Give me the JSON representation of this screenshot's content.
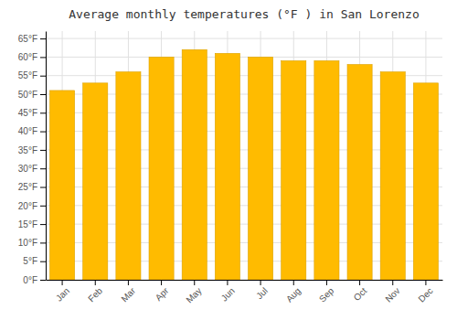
{
  "chart_data": {
    "type": "bar",
    "title": "Average monthly temperatures (°F ) in San Lorenzo",
    "categories": [
      "Jan",
      "Feb",
      "Mar",
      "Apr",
      "May",
      "Jun",
      "Jul",
      "Aug",
      "Sep",
      "Oct",
      "Nov",
      "Dec"
    ],
    "values": [
      51,
      53,
      56,
      60,
      62,
      61,
      60,
      59,
      59,
      58,
      56,
      53
    ],
    "color": "#FFBB00",
    "ylim": [
      0,
      67
    ],
    "yticks": [
      {
        "value": 0,
        "label": "0°F"
      },
      {
        "value": 5,
        "label": "5°F"
      },
      {
        "value": 10,
        "label": "10°F"
      },
      {
        "value": 15,
        "label": "15°F"
      },
      {
        "value": 20,
        "label": "20°F"
      },
      {
        "value": 25,
        "label": "25°F"
      },
      {
        "value": 30,
        "label": "30°F"
      },
      {
        "value": 35,
        "label": "35°F"
      },
      {
        "value": 40,
        "label": "40°F"
      },
      {
        "value": 45,
        "label": "45°F"
      },
      {
        "value": 50,
        "label": "50°F"
      },
      {
        "value": 55,
        "label": "55°F"
      },
      {
        "value": 60,
        "label": "60°F"
      },
      {
        "value": 65,
        "label": "65°F"
      }
    ],
    "grid": true
  }
}
